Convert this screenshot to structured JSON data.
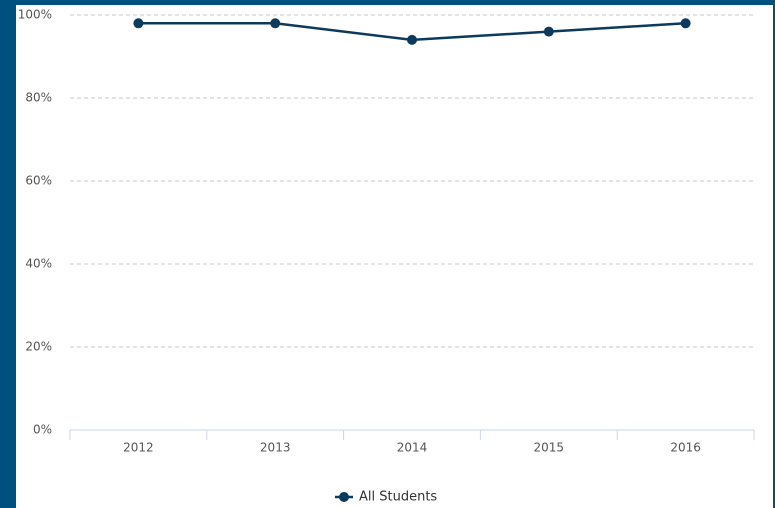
{
  "chart_data": {
    "type": "line",
    "categories": [
      "2012",
      "2013",
      "2014",
      "2015",
      "2016"
    ],
    "series": [
      {
        "name": "All Students",
        "color": "#0d3a5c",
        "values": [
          98,
          98,
          94,
          96,
          98
        ]
      }
    ],
    "ylim": [
      0,
      100
    ],
    "yticks": [
      {
        "value": 0,
        "label": "0%"
      },
      {
        "value": 20,
        "label": "20%"
      },
      {
        "value": 40,
        "label": "40%"
      },
      {
        "value": 60,
        "label": "60%"
      },
      {
        "value": 80,
        "label": "80%"
      },
      {
        "value": 100,
        "label": "100%"
      }
    ],
    "grid": true,
    "legend": "bottom"
  }
}
